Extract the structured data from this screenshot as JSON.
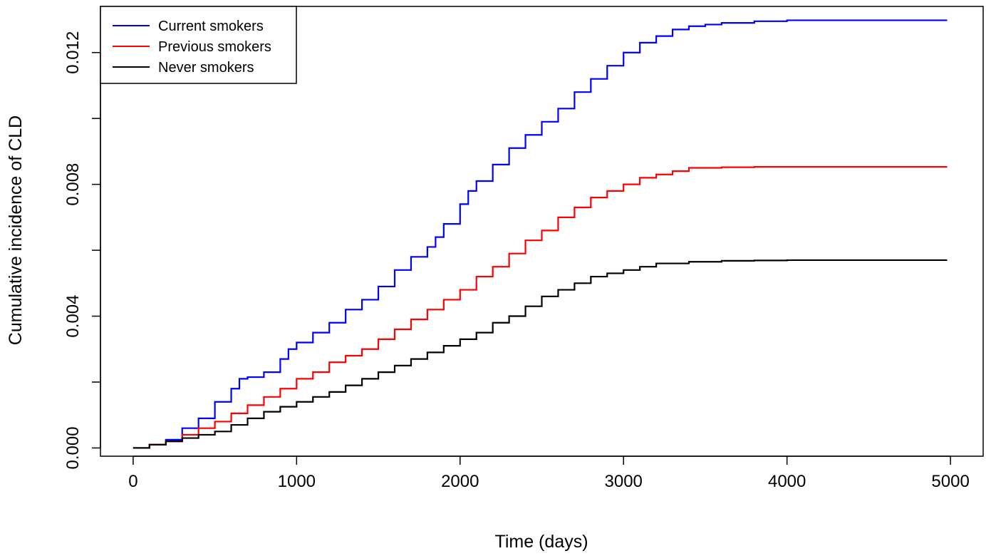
{
  "chart_data": {
    "type": "line",
    "title": "",
    "xlabel": "Time (days)",
    "ylabel": "Cumulative incidence of CLD",
    "xlim": [
      -200,
      5200
    ],
    "ylim": [
      -0.00025,
      0.0134
    ],
    "x_ticks": [
      0,
      1000,
      2000,
      3000,
      4000,
      5000
    ],
    "x_tick_labels": [
      "0",
      "1000",
      "2000",
      "3000",
      "4000",
      "5000"
    ],
    "y_ticks": [
      0.0,
      0.004,
      0.008,
      0.012
    ],
    "y_tick_labels": [
      "0.000",
      "0.004",
      "0.008",
      "0.012"
    ],
    "grid": false,
    "legend_position": "top-left",
    "series": [
      {
        "name": "Current smokers",
        "color": "#0000ff",
        "x": [
          0,
          100,
          200,
          300,
          400,
          500,
          600,
          650,
          700,
          800,
          900,
          950,
          1000,
          1100,
          1200,
          1300,
          1400,
          1500,
          1600,
          1700,
          1800,
          1850,
          1900,
          2000,
          2050,
          2100,
          2200,
          2300,
          2400,
          2500,
          2600,
          2700,
          2800,
          2900,
          3000,
          3100,
          3200,
          3300,
          3400,
          3500,
          3600,
          3800,
          4000,
          4500,
          4980
        ],
        "y": [
          0.0,
          0.0001,
          0.00025,
          0.0006,
          0.0009,
          0.0014,
          0.0018,
          0.0021,
          0.00215,
          0.0023,
          0.0027,
          0.003,
          0.0032,
          0.0035,
          0.0038,
          0.0042,
          0.0045,
          0.0049,
          0.0054,
          0.0058,
          0.0061,
          0.0064,
          0.0068,
          0.0074,
          0.0078,
          0.0081,
          0.0086,
          0.0091,
          0.0095,
          0.0099,
          0.0103,
          0.0108,
          0.0112,
          0.0116,
          0.012,
          0.0123,
          0.0125,
          0.0127,
          0.0128,
          0.01285,
          0.0129,
          0.01295,
          0.01298,
          0.01298,
          0.01298
        ]
      },
      {
        "name": "Previous smokers",
        "color": "#ff0000",
        "x": [
          0,
          100,
          200,
          300,
          400,
          500,
          600,
          700,
          800,
          900,
          1000,
          1100,
          1200,
          1300,
          1400,
          1500,
          1600,
          1700,
          1800,
          1900,
          2000,
          2100,
          2200,
          2300,
          2400,
          2500,
          2600,
          2700,
          2800,
          2900,
          3000,
          3100,
          3200,
          3300,
          3400,
          3600,
          3800,
          4000,
          4500,
          4980
        ],
        "y": [
          0.0,
          0.0001,
          0.0002,
          0.0004,
          0.0006,
          0.0008,
          0.00105,
          0.0013,
          0.00155,
          0.0018,
          0.0021,
          0.0023,
          0.0026,
          0.0028,
          0.003,
          0.0033,
          0.0036,
          0.0039,
          0.0042,
          0.0045,
          0.0048,
          0.0052,
          0.0055,
          0.0059,
          0.0063,
          0.0066,
          0.007,
          0.0073,
          0.0076,
          0.0078,
          0.008,
          0.0082,
          0.0083,
          0.0084,
          0.0085,
          0.00852,
          0.00853,
          0.00853,
          0.00853,
          0.00853
        ]
      },
      {
        "name": "Never smokers",
        "color": "#000000",
        "x": [
          0,
          100,
          200,
          300,
          400,
          500,
          600,
          700,
          800,
          900,
          1000,
          1100,
          1200,
          1300,
          1400,
          1500,
          1600,
          1700,
          1800,
          1900,
          2000,
          2100,
          2200,
          2300,
          2400,
          2500,
          2600,
          2700,
          2800,
          2900,
          3000,
          3100,
          3200,
          3400,
          3600,
          3800,
          4000,
          4500,
          4980
        ],
        "y": [
          0.0,
          0.0001,
          0.0002,
          0.0003,
          0.0004,
          0.0005,
          0.0007,
          0.0009,
          0.0011,
          0.00125,
          0.0014,
          0.00155,
          0.0017,
          0.0019,
          0.0021,
          0.0023,
          0.0025,
          0.0027,
          0.0029,
          0.0031,
          0.0033,
          0.0035,
          0.0038,
          0.004,
          0.0043,
          0.0046,
          0.0048,
          0.005,
          0.0052,
          0.0053,
          0.0054,
          0.0055,
          0.0056,
          0.00565,
          0.00568,
          0.00569,
          0.0057,
          0.0057,
          0.0057
        ]
      }
    ]
  }
}
